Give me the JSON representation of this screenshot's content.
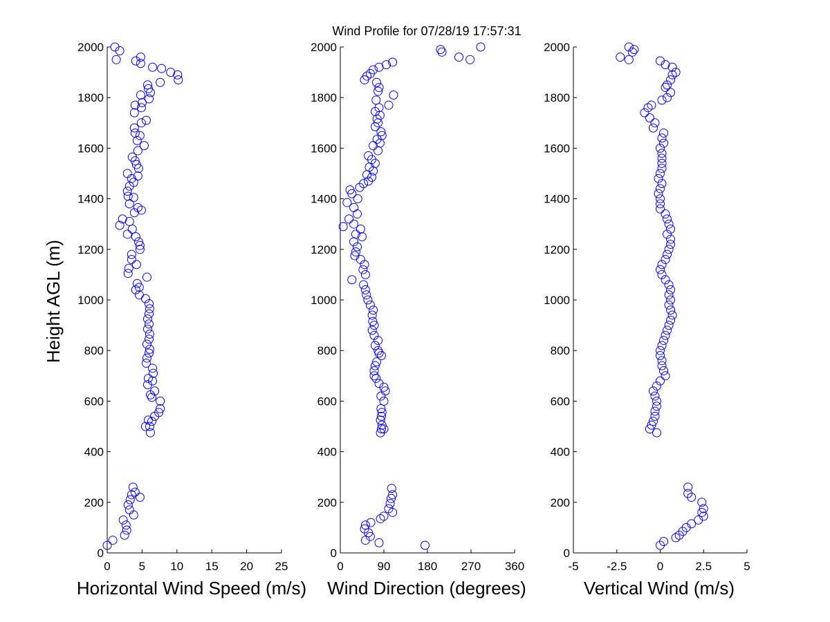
{
  "title": "Wind Profile for  07/28/19 17:57:31",
  "ylabel": "Height AGL (m)",
  "chart_data": [
    {
      "type": "scatter",
      "name": "horizontal",
      "xlabel": "Horizontal Wind Speed (m/s)",
      "xlim": [
        0,
        25
      ],
      "ylim": [
        0,
        2000
      ],
      "xticks": [
        0,
        5,
        10,
        15,
        20,
        25
      ],
      "xtick_labels": [
        "0",
        "5",
        "10",
        "15",
        "20",
        "25"
      ],
      "yticks": [
        0,
        200,
        400,
        600,
        800,
        1000,
        1200,
        1400,
        1600,
        1800,
        2000
      ],
      "ytick_labels": [
        "0",
        "200",
        "400",
        "600",
        "800",
        "1000",
        "1200",
        "1400",
        "1600",
        "1800",
        "2000"
      ],
      "points": [
        [
          0,
          30
        ],
        [
          0.8,
          50
        ],
        [
          2.5,
          70
        ],
        [
          2.8,
          90
        ],
        [
          2.7,
          110
        ],
        [
          2.3,
          130
        ],
        [
          3.8,
          150
        ],
        [
          3.2,
          170
        ],
        [
          3,
          190
        ],
        [
          3.3,
          210
        ],
        [
          4.7,
          220
        ],
        [
          3.5,
          230
        ],
        [
          4,
          240
        ],
        [
          3.7,
          260
        ],
        [
          6.2,
          475
        ],
        [
          5.5,
          500
        ],
        [
          6.1,
          500
        ],
        [
          6.4,
          520
        ],
        [
          5.9,
          525
        ],
        [
          6.8,
          540
        ],
        [
          7.4,
          555
        ],
        [
          7.6,
          570
        ],
        [
          7.6,
          600
        ],
        [
          6.4,
          615
        ],
        [
          6.2,
          625
        ],
        [
          6.8,
          640
        ],
        [
          5.8,
          665
        ],
        [
          6.5,
          680
        ],
        [
          5.9,
          690
        ],
        [
          6.6,
          710
        ],
        [
          6.5,
          730
        ],
        [
          5.6,
          750
        ],
        [
          5.7,
          770
        ],
        [
          6,
          790
        ],
        [
          6.1,
          805
        ],
        [
          5.7,
          825
        ],
        [
          6,
          845
        ],
        [
          6.1,
          865
        ],
        [
          5.8,
          885
        ],
        [
          6,
          905
        ],
        [
          5.8,
          925
        ],
        [
          6,
          945
        ],
        [
          6.1,
          965
        ],
        [
          6,
          985
        ],
        [
          5.5,
          1005
        ],
        [
          4.6,
          1020
        ],
        [
          4.1,
          1040
        ],
        [
          4.6,
          1050
        ],
        [
          4.3,
          1065
        ],
        [
          5.7,
          1090
        ],
        [
          3,
          1105
        ],
        [
          3.1,
          1125
        ],
        [
          4.2,
          1140
        ],
        [
          3.5,
          1160
        ],
        [
          3.5,
          1180
        ],
        [
          4.7,
          1200
        ],
        [
          4.7,
          1215
        ],
        [
          4.5,
          1230
        ],
        [
          4.1,
          1250
        ],
        [
          2.9,
          1260
        ],
        [
          3.6,
          1280
        ],
        [
          1.8,
          1295
        ],
        [
          3.2,
          1310
        ],
        [
          2.2,
          1320
        ],
        [
          3.9,
          1345
        ],
        [
          4.9,
          1355
        ],
        [
          4.4,
          1365
        ],
        [
          3.2,
          1380
        ],
        [
          3.8,
          1405
        ],
        [
          3,
          1410
        ],
        [
          2.9,
          1430
        ],
        [
          3.2,
          1450
        ],
        [
          3.8,
          1465
        ],
        [
          3.5,
          1480
        ],
        [
          4.4,
          1490
        ],
        [
          2.9,
          1500
        ],
        [
          4.5,
          1520
        ],
        [
          4.2,
          1535
        ],
        [
          4,
          1550
        ],
        [
          3.6,
          1565
        ],
        [
          5.3,
          1610
        ],
        [
          4.4,
          1590
        ],
        [
          4.3,
          1630
        ],
        [
          4.7,
          1650
        ],
        [
          4,
          1660
        ],
        [
          3.9,
          1680
        ],
        [
          4.9,
          1700
        ],
        [
          5.6,
          1710
        ],
        [
          3.9,
          1740
        ],
        [
          4.9,
          1760
        ],
        [
          4,
          1770
        ],
        [
          5,
          1780
        ],
        [
          6,
          1795
        ],
        [
          4.8,
          1810
        ],
        [
          6.2,
          1820
        ],
        [
          5.9,
          1835
        ],
        [
          5.8,
          1850
        ],
        [
          7.6,
          1860
        ],
        [
          10.2,
          1870
        ],
        [
          10.1,
          1890
        ],
        [
          9.1,
          1900
        ],
        [
          7.8,
          1915
        ],
        [
          6.5,
          1920
        ],
        [
          4.8,
          1935
        ],
        [
          4.1,
          1945
        ],
        [
          1.3,
          1950
        ],
        [
          4.8,
          1960
        ],
        [
          1.8,
          1985
        ],
        [
          1.1,
          2000
        ]
      ]
    },
    {
      "type": "scatter",
      "name": "direction",
      "xlabel": "Wind Direction (degrees)",
      "xlim": [
        0,
        360
      ],
      "ylim": [
        0,
        2000
      ],
      "xticks": [
        0,
        90,
        180,
        270,
        360
      ],
      "xtick_labels": [
        "0",
        "90",
        "180",
        "270",
        "360"
      ],
      "yticks": [
        0,
        200,
        400,
        600,
        800,
        1000,
        1200,
        1400,
        1600,
        1800,
        2000
      ],
      "ytick_labels": [
        "0",
        "200",
        "400",
        "600",
        "800",
        "1000",
        "1200",
        "1400",
        "1600",
        "1800",
        "2000"
      ],
      "points": [
        [
          175,
          30
        ],
        [
          80,
          40
        ],
        [
          52,
          50
        ],
        [
          62,
          65
        ],
        [
          58,
          80
        ],
        [
          50,
          95
        ],
        [
          52,
          110
        ],
        [
          63,
          120
        ],
        [
          83,
          135
        ],
        [
          90,
          145
        ],
        [
          108,
          160
        ],
        [
          100,
          175
        ],
        [
          103,
          195
        ],
        [
          105,
          215
        ],
        [
          108,
          230
        ],
        [
          106,
          255
        ],
        [
          83,
          475
        ],
        [
          85,
          490
        ],
        [
          90,
          490
        ],
        [
          86,
          505
        ],
        [
          83,
          525
        ],
        [
          85,
          540
        ],
        [
          86,
          555
        ],
        [
          84,
          570
        ],
        [
          90,
          600
        ],
        [
          84,
          620
        ],
        [
          93,
          640
        ],
        [
          90,
          655
        ],
        [
          80,
          670
        ],
        [
          74,
          690
        ],
        [
          70,
          700
        ],
        [
          70,
          720
        ],
        [
          72,
          740
        ],
        [
          75,
          755
        ],
        [
          85,
          780
        ],
        [
          80,
          790
        ],
        [
          78,
          800
        ],
        [
          72,
          820
        ],
        [
          78,
          840
        ],
        [
          70,
          860
        ],
        [
          66,
          880
        ],
        [
          70,
          900
        ],
        [
          67,
          915
        ],
        [
          66,
          940
        ],
        [
          68,
          960
        ],
        [
          62,
          980
        ],
        [
          57,
          1000
        ],
        [
          54,
          1020
        ],
        [
          52,
          1040
        ],
        [
          48,
          1060
        ],
        [
          24,
          1080
        ],
        [
          52,
          1100
        ],
        [
          47,
          1120
        ],
        [
          50,
          1140
        ],
        [
          42,
          1160
        ],
        [
          30,
          1175
        ],
        [
          32,
          1190
        ],
        [
          35,
          1210
        ],
        [
          28,
          1230
        ],
        [
          45,
          1250
        ],
        [
          32,
          1260
        ],
        [
          42,
          1280
        ],
        [
          6,
          1290
        ],
        [
          28,
          1300
        ],
        [
          18,
          1320
        ],
        [
          35,
          1340
        ],
        [
          28,
          1365
        ],
        [
          14,
          1385
        ],
        [
          36,
          1400
        ],
        [
          24,
          1420
        ],
        [
          20,
          1435
        ],
        [
          40,
          1445
        ],
        [
          48,
          1460
        ],
        [
          58,
          1470
        ],
        [
          65,
          1485
        ],
        [
          55,
          1495
        ],
        [
          68,
          1510
        ],
        [
          60,
          1525
        ],
        [
          72,
          1540
        ],
        [
          65,
          1555
        ],
        [
          58,
          1570
        ],
        [
          78,
          1590
        ],
        [
          68,
          1610
        ],
        [
          82,
          1620
        ],
        [
          76,
          1635
        ],
        [
          86,
          1650
        ],
        [
          84,
          1665
        ],
        [
          72,
          1685
        ],
        [
          78,
          1700
        ],
        [
          76,
          1715
        ],
        [
          82,
          1730
        ],
        [
          72,
          1745
        ],
        [
          80,
          1760
        ],
        [
          100,
          1770
        ],
        [
          74,
          1790
        ],
        [
          110,
          1810
        ],
        [
          78,
          1825
        ],
        [
          80,
          1840
        ],
        [
          75,
          1860
        ],
        [
          50,
          1870
        ],
        [
          55,
          1885
        ],
        [
          62,
          1895
        ],
        [
          68,
          1910
        ],
        [
          80,
          1920
        ],
        [
          95,
          1930
        ],
        [
          108,
          1940
        ],
        [
          210,
          1980
        ],
        [
          207,
          1990
        ],
        [
          245,
          1960
        ],
        [
          268,
          1950
        ],
        [
          290,
          2000
        ]
      ]
    },
    {
      "type": "scatter",
      "name": "vertical",
      "xlabel": "Vertical Wind (m/s)",
      "xlim": [
        -5,
        5
      ],
      "ylim": [
        0,
        2000
      ],
      "xticks": [
        -5,
        -2.5,
        0,
        2.5,
        5
      ],
      "xtick_labels": [
        "-5",
        "-2.5",
        "0",
        "2.5",
        "5"
      ],
      "yticks": [
        0,
        200,
        400,
        600,
        800,
        1000,
        1200,
        1400,
        1600,
        1800,
        2000
      ],
      "ytick_labels": [
        "0",
        "200",
        "400",
        "600",
        "800",
        "1000",
        "1200",
        "1400",
        "1600",
        "1800",
        "2000"
      ],
      "points": [
        [
          0,
          30
        ],
        [
          0.2,
          45
        ],
        [
          0.9,
          60
        ],
        [
          1.1,
          70
        ],
        [
          1.3,
          85
        ],
        [
          1.5,
          100
        ],
        [
          1.8,
          115
        ],
        [
          2.2,
          130
        ],
        [
          2.5,
          145
        ],
        [
          2.4,
          160
        ],
        [
          2.5,
          175
        ],
        [
          2.4,
          200
        ],
        [
          1.8,
          220
        ],
        [
          1.6,
          235
        ],
        [
          1.6,
          260
        ],
        [
          -0.2,
          475
        ],
        [
          -0.6,
          490
        ],
        [
          -0.5,
          505
        ],
        [
          -0.4,
          520
        ],
        [
          -0.3,
          540
        ],
        [
          -0.3,
          560
        ],
        [
          -0.2,
          580
        ],
        [
          -0.2,
          600
        ],
        [
          -0.3,
          620
        ],
        [
          -0.4,
          640
        ],
        [
          -0.2,
          660
        ],
        [
          0,
          680
        ],
        [
          0.3,
          700
        ],
        [
          0.2,
          720
        ],
        [
          0.1,
          740
        ],
        [
          0.1,
          760
        ],
        [
          0,
          780
        ],
        [
          0,
          800
        ],
        [
          0.1,
          820
        ],
        [
          0.2,
          840
        ],
        [
          0.3,
          860
        ],
        [
          0.4,
          880
        ],
        [
          0.5,
          900
        ],
        [
          0.6,
          920
        ],
        [
          0.7,
          940
        ],
        [
          0.6,
          960
        ],
        [
          0.5,
          980
        ],
        [
          0.6,
          1000
        ],
        [
          0.5,
          1020
        ],
        [
          0.6,
          1040
        ],
        [
          0.5,
          1060
        ],
        [
          0.3,
          1080
        ],
        [
          0.1,
          1100
        ],
        [
          0,
          1120
        ],
        [
          0.1,
          1140
        ],
        [
          0.3,
          1160
        ],
        [
          0.4,
          1180
        ],
        [
          0.5,
          1200
        ],
        [
          0.6,
          1220
        ],
        [
          0.6,
          1240
        ],
        [
          0.4,
          1260
        ],
        [
          0.6,
          1280
        ],
        [
          0.5,
          1300
        ],
        [
          0.4,
          1320
        ],
        [
          0.3,
          1340
        ],
        [
          0,
          1360
        ],
        [
          0,
          1380
        ],
        [
          0,
          1400
        ],
        [
          -0.1,
          1420
        ],
        [
          0,
          1440
        ],
        [
          0.1,
          1460
        ],
        [
          -0.1,
          1480
        ],
        [
          0,
          1500
        ],
        [
          0.1,
          1520
        ],
        [
          0.1,
          1540
        ],
        [
          0.1,
          1560
        ],
        [
          0.1,
          1580
        ],
        [
          0,
          1600
        ],
        [
          0.2,
          1620
        ],
        [
          0.1,
          1640
        ],
        [
          0.2,
          1660
        ],
        [
          -0.4,
          1680
        ],
        [
          -0.3,
          1700
        ],
        [
          -0.6,
          1720
        ],
        [
          -0.9,
          1740
        ],
        [
          -0.7,
          1760
        ],
        [
          -0.5,
          1770
        ],
        [
          0.1,
          1790
        ],
        [
          0.4,
          1800
        ],
        [
          0.6,
          1820
        ],
        [
          0.3,
          1840
        ],
        [
          0.4,
          1850
        ],
        [
          0.6,
          1870
        ],
        [
          0.7,
          1890
        ],
        [
          0.9,
          1900
        ],
        [
          0.7,
          1920
        ],
        [
          0.3,
          1930
        ],
        [
          0,
          1945
        ],
        [
          -2.3,
          1960
        ],
        [
          -1.8,
          1950
        ],
        [
          -1.6,
          1980
        ],
        [
          -1.5,
          1990
        ],
        [
          -1.8,
          2000
        ]
      ]
    }
  ]
}
